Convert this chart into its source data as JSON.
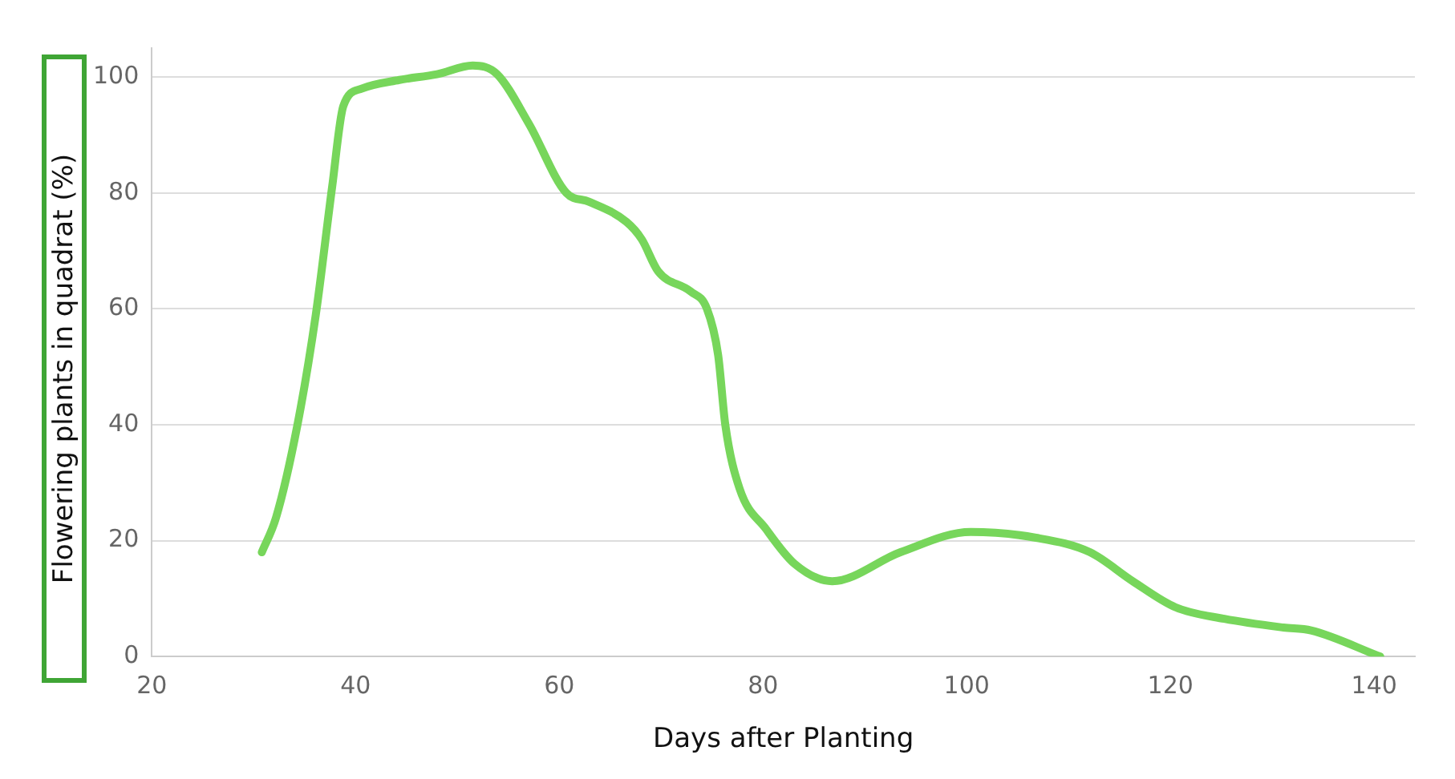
{
  "chart_data": {
    "type": "line",
    "xlabel": "Days after Planting",
    "ylabel": "Flowering plants in quadrat (%)",
    "x": [
      30.8,
      32.2,
      34.3,
      36.1,
      37.7,
      38.8,
      40.6,
      44.3,
      48,
      51.5,
      53.9,
      57,
      60.7,
      62.9,
      66.6,
      68.1,
      69.7,
      72.9,
      74.5,
      75.6,
      76.3,
      77.7,
      80.3,
      83.1,
      86.8,
      93.5,
      100.4,
      106.8,
      112.1,
      116.3,
      120.5,
      125.3,
      131.1,
      133.8,
      140.6
    ],
    "series": [
      {
        "color": "#77d65b",
        "values": [
          18,
          24,
          40,
          59,
          81,
          95,
          98,
          99.5,
          100.5,
          102,
          100.5,
          92,
          80,
          78.5,
          75,
          72,
          66.5,
          63,
          60,
          52,
          40,
          29,
          22,
          16,
          13,
          18,
          21.5,
          20.5,
          18,
          13,
          8.5,
          6.5,
          5,
          4.5,
          0
        ]
      }
    ],
    "xlim": [
      20,
      144
    ],
    "ylim": [
      0,
      105
    ],
    "xticks": [
      20,
      40,
      60,
      80,
      100,
      120,
      140
    ],
    "yticks": [
      0,
      20,
      40,
      60,
      80,
      100
    ],
    "grid": "y",
    "legend": false,
    "marker": "none",
    "line_style": "solid"
  }
}
